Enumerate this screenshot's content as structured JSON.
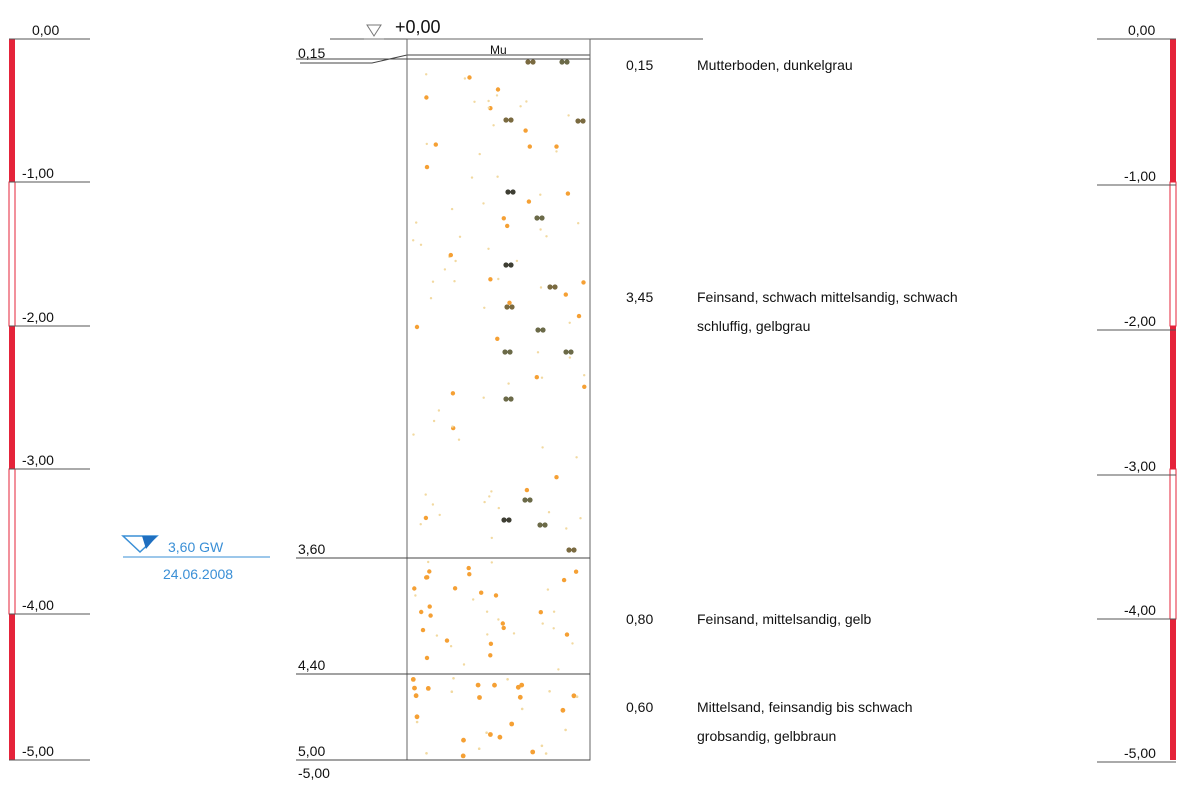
{
  "datum_label": "+0,00",
  "scale_left": [
    "0,00",
    "-1,00",
    "-2,00",
    "-3,00",
    "-4,00",
    "-5,00"
  ],
  "scale_right": [
    "0,00",
    "-1,00",
    "-2,00",
    "-3,00",
    "-4,00",
    "-5,00"
  ],
  "column_symbol": "Mu",
  "boundary_depths": [
    "0,15",
    "3,60",
    "4,40",
    "5,00"
  ],
  "bottom_label": "-5,00",
  "groundwater": {
    "depth_label": "3,60 GW",
    "date": "24.06.2008",
    "color": "#3a8fd6"
  },
  "layers": [
    {
      "thickness": "0,15",
      "description": [
        "Mutterboden, dunkelgrau"
      ]
    },
    {
      "thickness": "3,45",
      "description": [
        "Feinsand, schwach mittelsandig, schwach",
        "schluffig, gelbgrau"
      ]
    },
    {
      "thickness": "0,80",
      "description": [
        "Feinsand, mittelsandig, gelb"
      ]
    },
    {
      "thickness": "0,60",
      "description": [
        "Mittelsand, feinsandig bis schwach",
        "grobsandig, gelbbraun"
      ]
    }
  ],
  "colors": {
    "scale_red": "#e5233a",
    "dot_orange": "#f5a034",
    "dot_pale": "#f2d9a0",
    "dot_dark": "#555544"
  }
}
